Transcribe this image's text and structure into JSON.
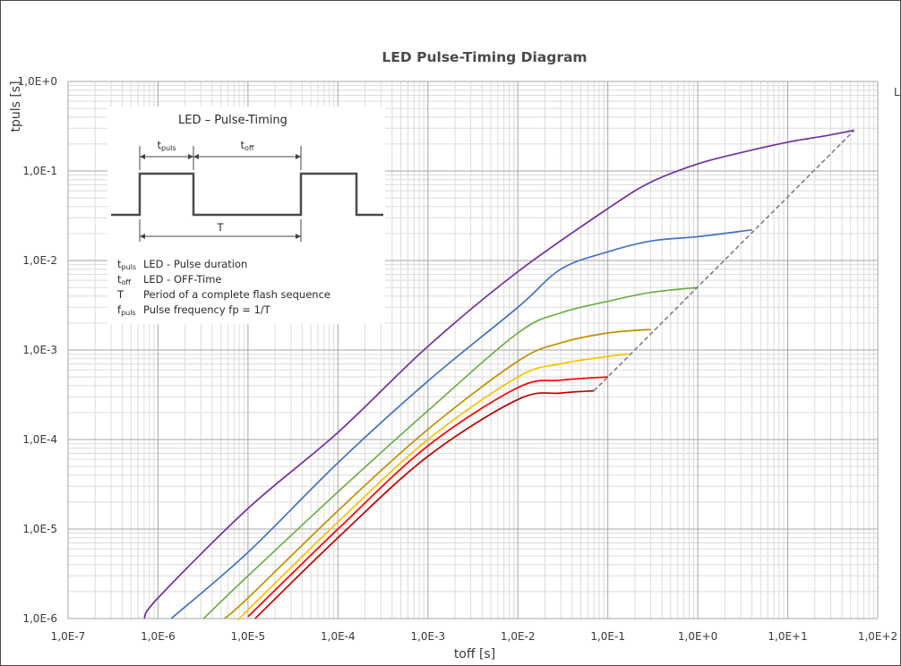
{
  "chart_data": {
    "type": "line",
    "title": "LED Pulse-Timing Diagram",
    "xlabel": "toff [s]",
    "ylabel": "tpuls [s]",
    "xscale": "log",
    "yscale": "log",
    "xlim": [
      1e-07,
      100
    ],
    "ylim": [
      1e-06,
      1
    ],
    "x_ticks": [
      "1,0E-7",
      "1,0E-6",
      "1,0E-5",
      "1,0E-4",
      "1,0E-3",
      "1,0E-2",
      "1,0E-1",
      "1,0E+0",
      "1,0E+1",
      "1,0E+2"
    ],
    "y_ticks": [
      "1,0E-6",
      "1,0E-5",
      "1,0E-4",
      "1,0E-3",
      "1,0E-2",
      "1,0E-1",
      "1,0E+0"
    ],
    "grid": "major and minor",
    "legend_fragment": "L",
    "series": [
      {
        "color": "#7030a0",
        "x": [
          7e-07,
          1e-06,
          1e-05,
          0.0001,
          0.001,
          0.01,
          0.1,
          0.3,
          1,
          3,
          10,
          25,
          55
        ],
        "y": [
          1e-06,
          1.7e-06,
          1.7e-05,
          0.00012,
          0.0011,
          0.0075,
          0.038,
          0.075,
          0.12,
          0.16,
          0.21,
          0.245,
          0.285
        ]
      },
      {
        "color": "#4472c4",
        "x": [
          1.4e-06,
          1e-05,
          0.0001,
          0.001,
          0.01,
          0.03,
          0.1,
          0.3,
          1,
          4
        ],
        "y": [
          1e-06,
          5.5e-06,
          5.5e-05,
          0.00045,
          0.003,
          0.008,
          0.0125,
          0.0165,
          0.0185,
          0.022
        ]
      },
      {
        "color": "#70ad47",
        "x": [
          3.2e-06,
          1e-05,
          0.0001,
          0.001,
          0.01,
          0.03,
          0.1,
          0.3,
          1
        ],
        "y": [
          1e-06,
          3e-06,
          2.6e-05,
          0.00021,
          0.00155,
          0.0026,
          0.0035,
          0.0044,
          0.005
        ]
      },
      {
        "color": "#bf9000",
        "x": [
          5.5e-06,
          1e-05,
          0.0001,
          0.001,
          0.01,
          0.03,
          0.1,
          0.3
        ],
        "y": [
          1e-06,
          1.7e-06,
          1.6e-05,
          0.00013,
          0.00075,
          0.0012,
          0.00155,
          0.0017
        ]
      },
      {
        "color": "#ffc000",
        "x": [
          8e-06,
          1e-05,
          0.0001,
          0.001,
          0.01,
          0.03,
          0.1,
          0.17
        ],
        "y": [
          1e-06,
          1.25e-06,
          1.2e-05,
          0.0001,
          0.0005,
          0.0007,
          0.00085,
          0.0009
        ]
      },
      {
        "color": "#ff0000",
        "x": [
          1e-05,
          0.0001,
          0.001,
          0.01,
          0.03,
          0.1
        ],
        "y": [
          1.05e-06,
          1e-05,
          8.5e-05,
          0.00038,
          0.00046,
          0.0005
        ]
      },
      {
        "color": "#c00000",
        "x": [
          1.2e-05,
          0.0001,
          0.001,
          0.01,
          0.03,
          0.07
        ],
        "y": [
          1e-06,
          8e-06,
          6.5e-05,
          0.00028,
          0.00033,
          0.00035
        ]
      },
      {
        "color": "#7f7f7f",
        "dashed": true,
        "x": [
          0.07,
          55
        ],
        "y": [
          0.00035,
          0.285
        ]
      }
    ]
  },
  "inset": {
    "title": "LED – Pulse-Timing",
    "label_tpuls": "t",
    "label_tpuls_sub": "puls",
    "label_toff": "t",
    "label_toff_sub": "off",
    "label_T": "T",
    "legend": [
      {
        "sym": "t",
        "sub": "puls",
        "text": "LED - Pulse duration"
      },
      {
        "sym": "t",
        "sub": "off",
        "text": "LED - OFF-Time"
      },
      {
        "sym": "T",
        "sub": "",
        "text": "Period of a complete flash sequence"
      },
      {
        "sym": "f",
        "sub": "puls",
        "text": "Pulse frequency fp = 1/T"
      }
    ]
  }
}
